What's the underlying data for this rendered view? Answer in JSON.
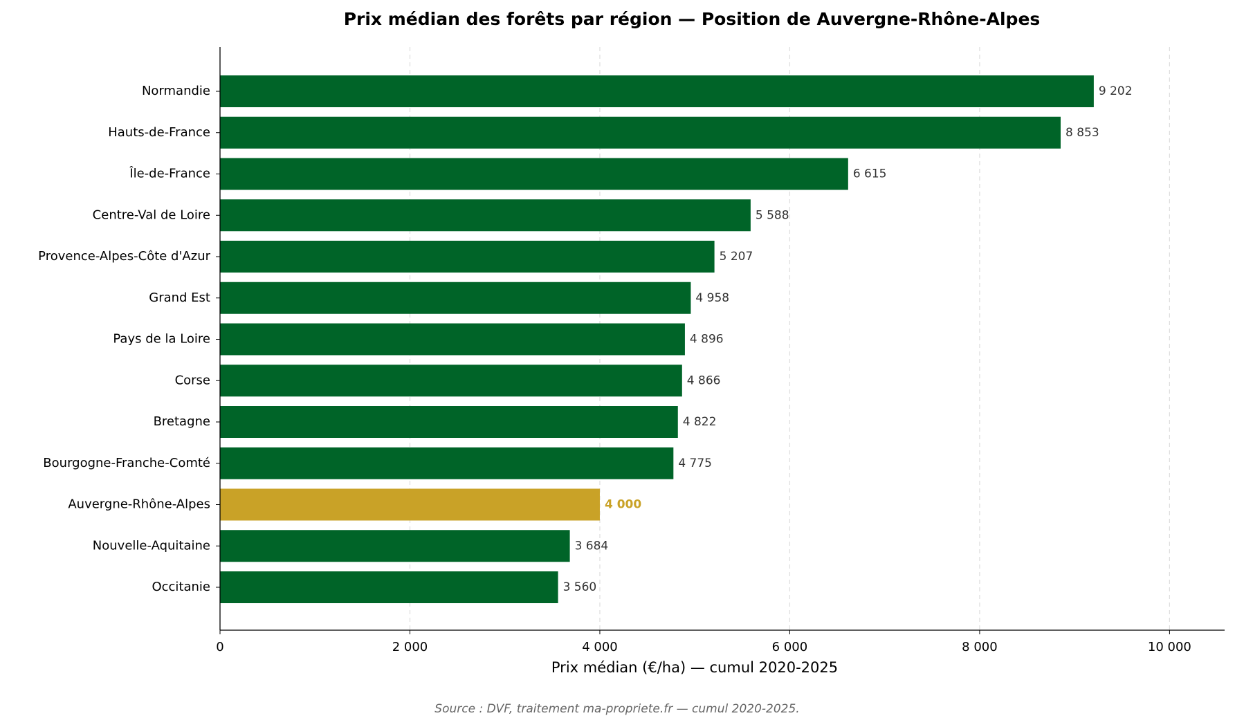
{
  "chart_data": {
    "type": "bar",
    "orientation": "horizontal",
    "title": "Prix médian des forêts par région — Position de Auvergne-Rhône-Alpes",
    "x_label": "Prix médian (€/ha) — cumul 2020-2025",
    "source": "Source : DVF, traitement ma-propriete.fr — cumul 2020-2025.",
    "categories": [
      "Normandie",
      "Hauts-de-France",
      "Île-de-France",
      "Centre-Val de Loire",
      "Provence-Alpes-Côte d'Azur",
      "Grand Est",
      "Pays de la Loire",
      "Corse",
      "Bretagne",
      "Bourgogne-Franche-Comté",
      "Auvergne-Rhône-Alpes",
      "Nouvelle-Aquitaine",
      "Occitanie"
    ],
    "values": [
      9202,
      8853,
      6615,
      5588,
      5207,
      4958,
      4896,
      4866,
      4822,
      4775,
      4000,
      3684,
      3560
    ],
    "value_labels": [
      "9 202",
      "8 853",
      "6 615",
      "5 588",
      "5 207",
      "4 958",
      "4 896",
      "4 866",
      "4 822",
      "4 775",
      "4 000",
      "3 684",
      "3 560"
    ],
    "color": "#006428",
    "highlight": "Auvergne-Rhône-Alpes",
    "highlight_color": "#c9a227",
    "xlim": [
      0,
      10580
    ],
    "xticks": [
      0,
      {
        "value": 2000,
        "label": "2 000"
      },
      {
        "value": 4000,
        "label": "4 000"
      },
      {
        "value": 6000,
        "label": "6 000"
      },
      {
        "value": 8000,
        "label": "8 000"
      },
      {
        "value": 10000,
        "label": "10 000"
      }
    ],
    "grid": true
  }
}
